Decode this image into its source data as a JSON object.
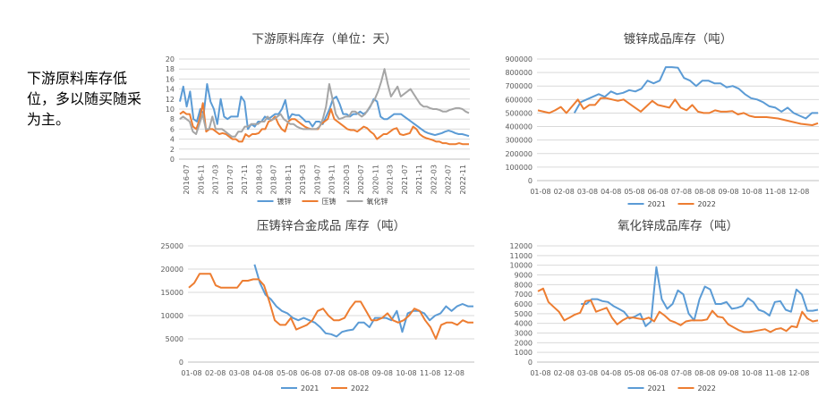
{
  "note": "下游原料库存低位，多以随买随采为主。",
  "colors": {
    "blue": "#5b9bd5",
    "orange": "#ed7d31",
    "gray": "#a5a5a5"
  },
  "chart_data": [
    {
      "id": "c1",
      "type": "line",
      "title": "下游原料库存（单位：天）",
      "ylim": [
        0,
        20
      ],
      "yticks": [
        "0",
        "2",
        "4",
        "6",
        "8",
        "10",
        "12",
        "14",
        "16",
        "18",
        "20"
      ],
      "xticks": [
        "2016-07",
        "2016-11",
        "2017-03",
        "2017-07",
        "2017-11",
        "2018-03",
        "2018-07",
        "2018-11",
        "2019-03",
        "2019-07",
        "2019-11",
        "2020-03",
        "2020-07",
        "2020-11",
        "2021-03",
        "2021-07",
        "2021-11",
        "2022-03",
        "2022-07",
        "2022-11"
      ],
      "legend": [
        "镀锌",
        "压铸",
        "氧化锌"
      ],
      "series": [
        {
          "name": "镀锌",
          "values": [
            11.5,
            14.5,
            10.5,
            13.5,
            8,
            7.5,
            10,
            9,
            15,
            11.5,
            10,
            7,
            12,
            8.5,
            8,
            8.5,
            8.5,
            8.5,
            12.5,
            11.5,
            6,
            7,
            6.5,
            7.5,
            7.5,
            8.5,
            8,
            8.5,
            9,
            9,
            10,
            11.8,
            8,
            9,
            8.8,
            8.8,
            8.2,
            7.5,
            7.5,
            6.5,
            7.5,
            7.5,
            7,
            8.5,
            10,
            12,
            12.5,
            11,
            9,
            9,
            8.5,
            9,
            9,
            9.5,
            9,
            9.5,
            10.5,
            12,
            11.5,
            8.5,
            8,
            8,
            8.5,
            9,
            9,
            9,
            8.5,
            8,
            7.5,
            7,
            6.5,
            6,
            5.5,
            5.2,
            5,
            4.8,
            5,
            5.2,
            5.5,
            5.7,
            5.5,
            5.2,
            5,
            5,
            4.8,
            4.6
          ]
        },
        {
          "name": "压铸",
          "values": [
            9,
            9.5,
            9,
            9,
            6.5,
            6,
            8,
            11.2,
            5.5,
            6,
            6,
            5.5,
            5,
            5.2,
            5,
            4.5,
            4,
            4,
            3.5,
            3.5,
            5,
            4.5,
            5,
            5,
            5.2,
            6,
            6,
            7.5,
            7.8,
            8.5,
            7,
            6,
            5.5,
            7.5,
            8,
            8,
            7.5,
            7,
            6.5,
            6.2,
            6,
            6,
            6,
            7,
            7.5,
            8,
            10,
            8,
            7.5,
            7,
            6.5,
            6,
            5.8,
            5.8,
            5.5,
            6,
            6.5,
            6.2,
            5.5,
            5,
            4,
            4.5,
            5,
            5,
            5.5,
            6,
            6.2,
            5,
            4.8,
            5,
            5.2,
            6.5,
            6,
            5,
            4.5,
            4.2,
            4,
            3.8,
            3.5,
            3.5,
            3.2,
            3.2,
            3,
            3,
            3,
            3.2,
            3,
            3,
            3
          ]
        },
        {
          "name": "氧化锌",
          "values": [
            8,
            8.5,
            8,
            7.5,
            5.5,
            5,
            7,
            9,
            6,
            6,
            8.5,
            6,
            6,
            6,
            5.5,
            5,
            4.5,
            4.5,
            5.5,
            5.5,
            6.5,
            6.5,
            7,
            7,
            7,
            7.5,
            7.5,
            8.5,
            7.8,
            8,
            8.5,
            9,
            8,
            7.5,
            7,
            7,
            6.5,
            6.2,
            6,
            6,
            6,
            6,
            6,
            6.5,
            8,
            10.5,
            15,
            12,
            9,
            8,
            8.2,
            8.5,
            8.5,
            9.5,
            9.5,
            9,
            8.5,
            9,
            10,
            11,
            12,
            13.5,
            15.5,
            18,
            15,
            12.5,
            13.5,
            14.5,
            12.5,
            13,
            13.5,
            14,
            13,
            12,
            11,
            10.5,
            10.5,
            10.2,
            10,
            10,
            9.8,
            9.5,
            9.5,
            9.8,
            10,
            10.2,
            10.2,
            10,
            9.5,
            9.2
          ]
        }
      ]
    },
    {
      "id": "c2",
      "type": "line",
      "title": "镀锌成品库存（吨）",
      "ylim": [
        0,
        900000
      ],
      "yticks": [
        "0",
        "100000",
        "200000",
        "300000",
        "400000",
        "500000",
        "600000",
        "700000",
        "800000",
        "900000"
      ],
      "xticks": [
        "01-08",
        "02-08",
        "03-08",
        "04-08",
        "05-08",
        "06-08",
        "07-08",
        "08-08",
        "09-08",
        "10-08",
        "11-08",
        "12-08"
      ],
      "legend": [
        "2021",
        "2022"
      ],
      "series": [
        {
          "name": "2021",
          "values": [
            null,
            null,
            null,
            null,
            null,
            null,
            500000,
            580000,
            600000,
            620000,
            640000,
            620000,
            660000,
            640000,
            650000,
            670000,
            660000,
            680000,
            740000,
            720000,
            740000,
            840000,
            840000,
            835000,
            760000,
            740000,
            700000,
            740000,
            740000,
            720000,
            720000,
            690000,
            700000,
            680000,
            640000,
            610000,
            600000,
            580000,
            550000,
            540000,
            510000,
            540000,
            500000,
            480000,
            460000,
            500000,
            500000
          ]
        },
        {
          "name": "2022",
          "values": [
            520000,
            510000,
            500000,
            520000,
            545000,
            500000,
            550000,
            600000,
            530000,
            560000,
            560000,
            610000,
            610000,
            600000,
            590000,
            600000,
            570000,
            540000,
            510000,
            550000,
            590000,
            560000,
            550000,
            540000,
            600000,
            540000,
            520000,
            560000,
            510000,
            500000,
            500000,
            520000,
            510000,
            510000,
            515000,
            490000,
            500000,
            480000,
            470000,
            470000,
            470000,
            465000,
            460000,
            450000,
            440000,
            430000,
            420000,
            415000,
            410000,
            425000
          ]
        }
      ]
    },
    {
      "id": "c3",
      "type": "line",
      "title": "压铸锌合金成品 库存（吨）",
      "ylim": [
        0,
        25000
      ],
      "yticks": [
        "0",
        "5000",
        "10000",
        "15000",
        "20000",
        "25000"
      ],
      "xticks": [
        "01-08",
        "02-08",
        "03-08",
        "04-08",
        "05-08",
        "06-08",
        "07-08",
        "08-08",
        "09-08",
        "10-08",
        "11-08",
        "12-08"
      ],
      "legend": [
        "2021",
        "2022"
      ],
      "series": [
        {
          "name": "2021",
          "values": [
            null,
            null,
            null,
            null,
            null,
            null,
            null,
            null,
            null,
            null,
            null,
            null,
            21000,
            17000,
            14500,
            13500,
            12000,
            11000,
            10500,
            9500,
            9000,
            9500,
            9000,
            8500,
            7500,
            6200,
            6000,
            5500,
            6500,
            6800,
            7000,
            8500,
            8500,
            7500,
            9500,
            9500,
            9500,
            9000,
            11000,
            6500,
            10500,
            11000,
            11000,
            10500,
            9000,
            10000,
            10500,
            12000,
            11000,
            12000,
            12500,
            12000,
            12000
          ]
        },
        {
          "name": "2022",
          "values": [
            16000,
            17000,
            19000,
            19000,
            19000,
            16500,
            16000,
            16000,
            16000,
            16000,
            17500,
            17500,
            17800,
            17800,
            16500,
            13000,
            9000,
            8000,
            8000,
            9500,
            7000,
            7500,
            8000,
            9000,
            11000,
            11500,
            10000,
            9000,
            9000,
            9500,
            11500,
            13000,
            13000,
            11000,
            9000,
            9000,
            9500,
            10500,
            9000,
            8500,
            9000,
            10000,
            11500,
            11000,
            9000,
            7500,
            5000,
            8000,
            8500,
            8500,
            8000,
            9000,
            8500,
            8500
          ]
        }
      ]
    },
    {
      "id": "c4",
      "type": "line",
      "title": "氧化锌成品库存（吨）",
      "ylim": [
        0,
        12000
      ],
      "yticks": [
        "0",
        "1000",
        "2000",
        "3000",
        "4000",
        "5000",
        "6000",
        "7000",
        "8000",
        "9000",
        "10000",
        "11000",
        "12000"
      ],
      "xticks": [
        "01-08",
        "02-08",
        "03-08",
        "04-08",
        "05-08",
        "06-08",
        "07-08",
        "08-08",
        "09-08",
        "10-08",
        "11-08",
        "12-08"
      ],
      "legend": [
        "2021",
        "2022"
      ],
      "series": [
        {
          "name": "2021",
          "values": [
            null,
            null,
            null,
            null,
            null,
            null,
            null,
            null,
            6000,
            6000,
            6500,
            6500,
            6300,
            6200,
            5800,
            5500,
            5200,
            4500,
            4700,
            5000,
            3700,
            4200,
            9800,
            6500,
            5500,
            6000,
            7400,
            7000,
            5000,
            4300,
            6500,
            7800,
            7500,
            6000,
            6000,
            6200,
            5500,
            5600,
            5800,
            6600,
            6200,
            5400,
            5200,
            4800,
            6200,
            6300,
            5400,
            5200,
            7500,
            7000,
            5300,
            5300,
            5400
          ]
        },
        {
          "name": "2022",
          "values": [
            7300,
            7600,
            6200,
            5700,
            5200,
            4300,
            4600,
            4900,
            5100,
            6300,
            6400,
            5200,
            5400,
            5600,
            4600,
            3900,
            4300,
            4600,
            4600,
            4500,
            4400,
            4600,
            4200,
            5200,
            4800,
            4300,
            4100,
            3800,
            4200,
            4300,
            4300,
            4300,
            4400,
            5300,
            4700,
            4600,
            3900,
            3600,
            3300,
            3100,
            3100,
            3200,
            3300,
            3400,
            3100,
            3400,
            3500,
            3200,
            3700,
            3600,
            5200,
            4500,
            4200,
            4300
          ]
        }
      ]
    }
  ]
}
